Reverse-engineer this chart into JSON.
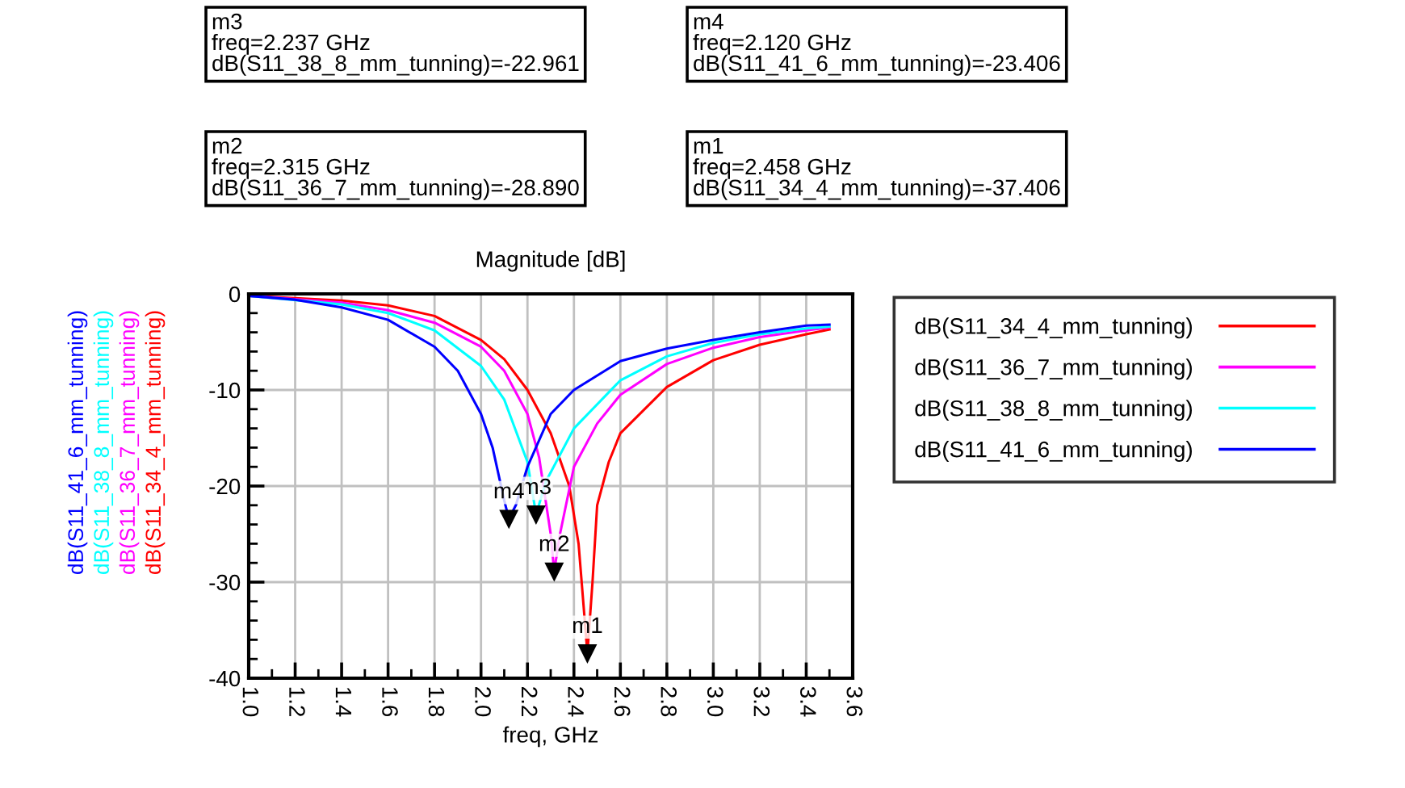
{
  "chart_data": {
    "type": "line",
    "title": "Magnitude [dB]",
    "xlabel": "freq, GHz",
    "xlim": [
      1.0,
      3.6
    ],
    "xticks": [
      {
        "value": 1.0,
        "label": "1.0"
      },
      1.2,
      1.4,
      1.6,
      1.8,
      {
        "value": 2.0,
        "label": "2.0"
      },
      2.2,
      2.4,
      2.6,
      2.8,
      {
        "value": 3.0,
        "label": "3.0"
      },
      3.2,
      3.4,
      3.6
    ],
    "ylim": [
      -40,
      0
    ],
    "yticks": [
      -40,
      -30,
      -20,
      -10,
      0
    ],
    "grid": true,
    "legend": "right",
    "line_style": "solid",
    "marker": "none",
    "series": [
      {
        "name": "dB(S11_34_4_mm_tunning)",
        "color": "#ff0000",
        "x": [
          1.0,
          1.4,
          1.6,
          1.8,
          2.0,
          2.1,
          2.2,
          2.3,
          2.38,
          2.42,
          2.458,
          2.48,
          2.5,
          2.55,
          2.6,
          2.8,
          3.0,
          3.2,
          3.4,
          3.5
        ],
        "values": [
          -0.2,
          -0.7,
          -1.2,
          -2.3,
          -4.8,
          -6.8,
          -10,
          -14.5,
          -20,
          -26,
          -37.406,
          -30,
          -22,
          -17.5,
          -14.5,
          -9.7,
          -6.9,
          -5.3,
          -4.2,
          -3.7
        ]
      },
      {
        "name": "dB(S11_36_7_mm_tunning)",
        "color": "#ff00ff",
        "x": [
          1.0,
          1.4,
          1.6,
          1.8,
          2.0,
          2.1,
          2.2,
          2.25,
          2.3,
          2.315,
          2.34,
          2.4,
          2.5,
          2.6,
          2.8,
          3.0,
          3.2,
          3.4,
          3.5
        ],
        "values": [
          -0.2,
          -0.9,
          -1.7,
          -3.0,
          -5.5,
          -8,
          -12.5,
          -17,
          -25,
          -28.89,
          -25,
          -18,
          -13.5,
          -10.5,
          -7.3,
          -5.6,
          -4.5,
          -3.8,
          -3.5
        ]
      },
      {
        "name": "dB(S11_38_8_mm_tunning)",
        "color": "#00ffff",
        "x": [
          1.0,
          1.4,
          1.6,
          1.8,
          2.0,
          2.1,
          2.2,
          2.237,
          2.28,
          2.4,
          2.6,
          2.8,
          3.0,
          3.2,
          3.4,
          3.5
        ],
        "values": [
          -0.2,
          -1.1,
          -2.0,
          -3.8,
          -7.5,
          -11,
          -17.5,
          -22.961,
          -19.5,
          -14,
          -9,
          -6.5,
          -5.1,
          -4.2,
          -3.6,
          -3.4
        ]
      },
      {
        "name": "dB(S11_41_6_mm_tunning)",
        "color": "#0000ff",
        "x": [
          1.0,
          1.2,
          1.4,
          1.6,
          1.8,
          1.9,
          2.0,
          2.05,
          2.1,
          2.12,
          2.15,
          2.2,
          2.3,
          2.4,
          2.6,
          2.8,
          3.0,
          3.2,
          3.4,
          3.5
        ],
        "values": [
          -0.2,
          -0.6,
          -1.4,
          -2.7,
          -5.5,
          -8,
          -12.5,
          -16,
          -21.5,
          -23.406,
          -22,
          -18,
          -12.5,
          -10,
          -7,
          -5.7,
          -4.8,
          -4.0,
          -3.3,
          -3.2
        ]
      }
    ],
    "annotations": [
      "m3\nfreq=2.237 GHz\ndB(S11_38_8_mm_tunning)=-22.961",
      "m4\nfreq=2.120 GHz\ndB(S11_41_6_mm_tunning)=-23.406",
      "m2\nfreq=2.315 GHz\ndB(S11_36_7_mm_tunning)=-28.890",
      "m1\nfreq=2.458 GHz\ndB(S11_34_4_mm_tunning)=-37.406",
      {
        "text": "m1",
        "x": 2.458,
        "y": -37.406
      },
      {
        "text": "m2",
        "x": 2.315,
        "y": -28.89
      },
      {
        "text": "m3",
        "x": 2.237,
        "y": -22.961
      },
      {
        "text": "m4",
        "x": 2.12,
        "y": -23.406
      }
    ]
  }
}
